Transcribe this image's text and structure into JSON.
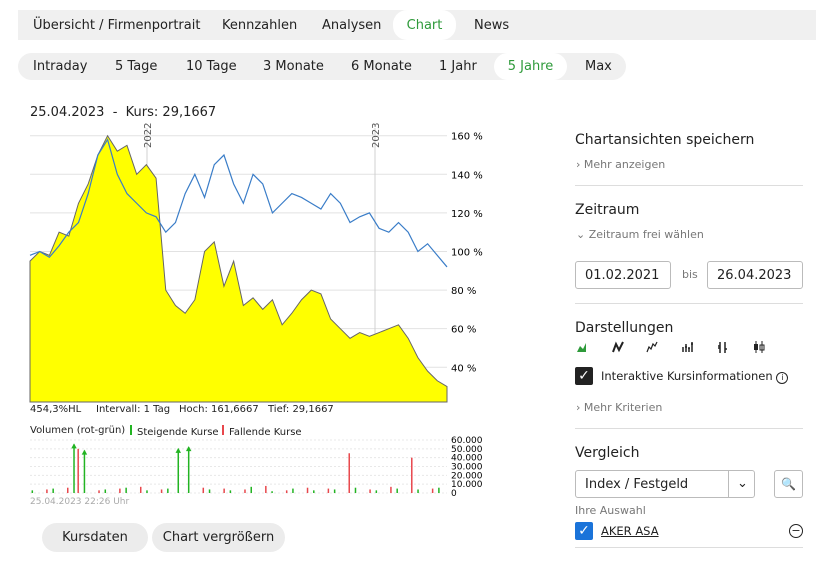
{
  "tabs": [
    {
      "label": "Übersicht / Firmenportrait"
    },
    {
      "label": "Kennzahlen"
    },
    {
      "label": "Analysen"
    },
    {
      "label": "Chart",
      "active": true
    },
    {
      "label": "News"
    }
  ],
  "periods": [
    {
      "label": "Intraday"
    },
    {
      "label": "5 Tage"
    },
    {
      "label": "10 Tage"
    },
    {
      "label": "3 Monate"
    },
    {
      "label": "6 Monate"
    },
    {
      "label": "1 Jahr"
    },
    {
      "label": "5 Jahre",
      "active": true
    },
    {
      "label": "Max"
    }
  ],
  "chart_header": {
    "date": "25.04.2023",
    "separator": "-",
    "price": "Kurs: 29,1667"
  },
  "chart_data": {
    "type": "line",
    "ylim": [
      22,
      164
    ],
    "yticks": [
      {
        "value": 160,
        "label": "160 %"
      },
      {
        "value": 140,
        "label": "140 %"
      },
      {
        "value": 120,
        "label": "120 %"
      },
      {
        "value": 100,
        "label": "100 %"
      },
      {
        "value": 80,
        "label": "80 %"
      },
      {
        "value": 60,
        "label": "60 %"
      },
      {
        "value": 40,
        "label": "40 %"
      }
    ],
    "year_markers": [
      "2022",
      "2023"
    ],
    "grid": true,
    "series": [
      {
        "color": "#ffff00",
        "fill": true,
        "values": [
          95,
          100,
          98,
          110,
          108,
          125,
          135,
          150,
          160,
          152,
          155,
          140,
          145,
          138,
          80,
          72,
          68,
          75,
          100,
          105,
          82,
          95,
          72,
          76,
          70,
          75,
          62,
          68,
          75,
          80,
          78,
          65,
          60,
          55,
          58,
          56,
          58,
          60,
          62,
          55,
          45,
          38,
          33,
          30
        ]
      },
      {
        "color": "#3a7dc8",
        "values": [
          98,
          100,
          97,
          103,
          110,
          115,
          130,
          150,
          158,
          140,
          130,
          125,
          120,
          118,
          110,
          115,
          130,
          140,
          128,
          145,
          150,
          135,
          125,
          140,
          135,
          120,
          125,
          130,
          128,
          125,
          122,
          130,
          125,
          115,
          118,
          120,
          112,
          110,
          115,
          110,
          100,
          104,
          98,
          92
        ]
      }
    ]
  },
  "stats": [
    "454,3%HL",
    "Intervall: 1 Tag",
    "Hoch: 161,6667",
    "Tief: 29,1667"
  ],
  "volume_legend": "Volumen (rot-grün)",
  "volume_chart": {
    "type": "bar",
    "ylim": [
      0,
      60000
    ],
    "yticks": [
      {
        "value": 60000,
        "label": "60.000"
      },
      {
        "value": 50000,
        "label": "50.000"
      },
      {
        "value": 40000,
        "label": "40.000"
      },
      {
        "value": 30000,
        "label": "30.000"
      },
      {
        "value": 20000,
        "label": "20.000"
      },
      {
        "value": 10000,
        "label": "10.000"
      },
      0
    ],
    "series": [
      {
        "name": "Steigende Kurse",
        "color": "#22b422",
        "values": [
          3000,
          null,
          5000,
          null,
          55000,
          48000,
          null,
          4000,
          null,
          6000,
          null,
          3000,
          null,
          5000,
          50000,
          52000,
          null,
          4000,
          null,
          3000,
          null,
          7000,
          null,
          2000,
          null,
          5000,
          null,
          3000,
          null,
          4000,
          null,
          6000,
          null,
          3000,
          null,
          5000,
          null,
          4000,
          null,
          6000
        ]
      },
      {
        "name": "Fallende Kurse",
        "color": "#e8474c",
        "values": [
          null,
          4000,
          null,
          6000,
          50000,
          null,
          3000,
          null,
          5000,
          null,
          7000,
          null,
          4000,
          null,
          null,
          null,
          6000,
          null,
          5000,
          null,
          4000,
          null,
          8000,
          null,
          3000,
          null,
          6000,
          null,
          5000,
          null,
          45000,
          null,
          4000,
          null,
          7000,
          null,
          40000,
          null,
          5000,
          null
        ]
      }
    ]
  },
  "timestamp": "25.04.2023 22:26 Uhr",
  "buttons": [
    "Kursdaten",
    "Chart vergrößern"
  ],
  "sidebar": {
    "save": {
      "title": "Chartansichten speichern",
      "more": "Mehr anzeigen"
    },
    "period": {
      "title": "Zeitraum",
      "toggle": "Zeitraum frei wählen",
      "from": "01.02.2021",
      "to_label": "bis",
      "to": "26.04.2023"
    },
    "display": {
      "title": "Darstellungen",
      "checkbox": "Interaktive Kursinformationen",
      "more": "Mehr Kriterien"
    },
    "compare": {
      "title": "Vergleich",
      "select": "Index / Festgeld",
      "selection_label": "Ihre Auswahl",
      "selection": "AKER ASA"
    }
  }
}
